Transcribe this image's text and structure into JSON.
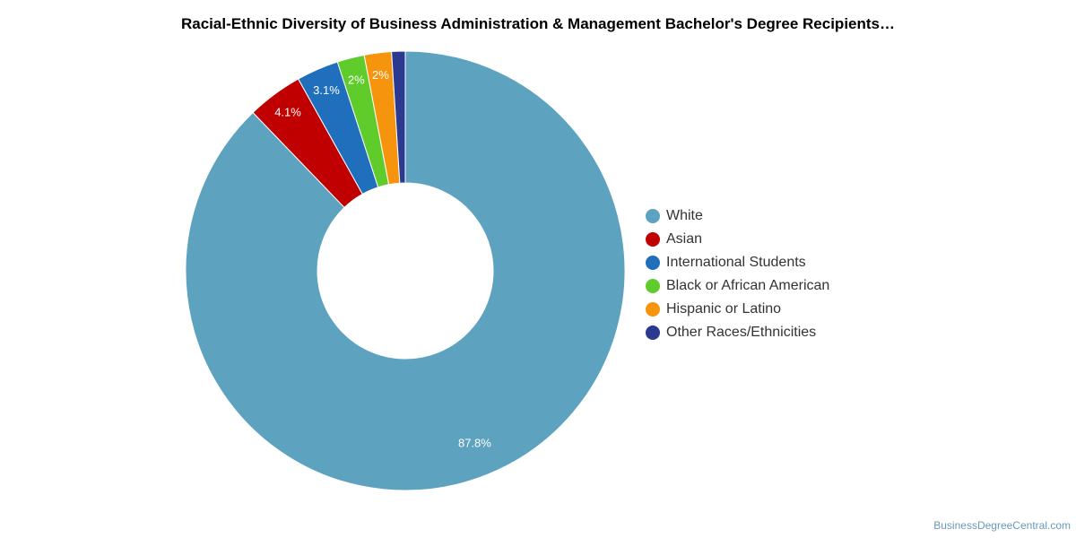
{
  "chart_data": {
    "type": "pie",
    "donut": true,
    "title": "Racial-Ethnic Diversity of Business Administration & Management Bachelor's Degree Recipients…",
    "slices": [
      {
        "label": "White",
        "value": 87.8,
        "display": "87.8%",
        "color": "#5da2bf"
      },
      {
        "label": "Asian",
        "value": 4.1,
        "display": "4.1%",
        "color": "#c00000"
      },
      {
        "label": "International Students",
        "value": 3.1,
        "display": "3.1%",
        "color": "#1f6fbd"
      },
      {
        "label": "Black or African American",
        "value": 2.0,
        "display": "2%",
        "color": "#5fcc2b"
      },
      {
        "label": "Hispanic or Latino",
        "value": 2.0,
        "display": "2%",
        "color": "#f7940e"
      },
      {
        "label": "Other Races/Ethnicities",
        "value": 1.0,
        "display": "",
        "color": "#2b3990"
      }
    ],
    "legend_position": "right"
  },
  "credit": "BusinessDegreeCentral.com"
}
